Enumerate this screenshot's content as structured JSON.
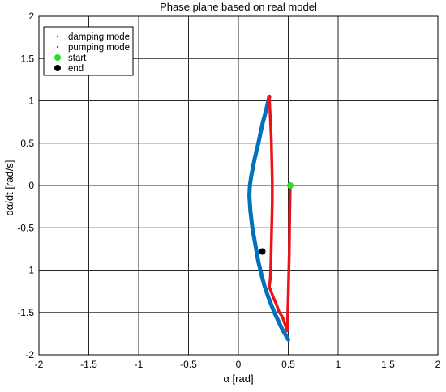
{
  "chart_data": {
    "type": "scatter",
    "title": "Phase plane based on real model",
    "xlabel": "α [rad]",
    "ylabel": "dα/dt [rad/s]",
    "xlim": [
      -2,
      2
    ],
    "ylim": [
      -2,
      2
    ],
    "xticks": [
      -2,
      -1.5,
      -1,
      -0.5,
      0,
      0.5,
      1,
      1.5,
      2
    ],
    "yticks": [
      -2,
      -1.5,
      -1,
      -0.5,
      0,
      0.5,
      1,
      1.5,
      2
    ],
    "xtick_labels": [
      "-2",
      "-1.5",
      "-1",
      "-0.5",
      "0",
      "0.5",
      "1",
      "1.5",
      "2"
    ],
    "ytick_labels": [
      "-2",
      "-1.5",
      "-1",
      "-0.5",
      "0",
      "0.5",
      "1",
      "1.5",
      "2"
    ],
    "grid": true,
    "legend_position": "top-left",
    "colors": {
      "damping": "#0072bd",
      "pumping": "#e8141a",
      "start": "#22e21f",
      "end": "#000000"
    },
    "series": [
      {
        "name": "damping mode",
        "color": "#0072bd",
        "x": [
          0.31,
          0.28,
          0.24,
          0.2,
          0.16,
          0.13,
          0.115,
          0.11,
          0.12,
          0.14,
          0.17,
          0.2,
          0.23,
          0.26,
          0.28,
          0.3,
          0.32,
          0.34,
          0.36,
          0.38,
          0.4,
          0.42,
          0.44,
          0.46,
          0.48,
          0.5
        ],
        "y": [
          1.05,
          0.9,
          0.72,
          0.5,
          0.3,
          0.12,
          0.0,
          -0.12,
          -0.3,
          -0.5,
          -0.7,
          -0.9,
          -1.05,
          -1.18,
          -1.25,
          -1.32,
          -1.38,
          -1.44,
          -1.5,
          -1.55,
          -1.6,
          -1.65,
          -1.7,
          -1.74,
          -1.78,
          -1.82
        ]
      },
      {
        "name": "pumping mode",
        "color": "#e8141a",
        "x": [
          0.31,
          0.32,
          0.33,
          0.335,
          0.34,
          0.34,
          0.335,
          0.33,
          0.325,
          0.32,
          0.31,
          0.36,
          0.38,
          0.41,
          0.44,
          0.47,
          0.49,
          0.5,
          0.51,
          0.515,
          0.52
        ],
        "y": [
          1.05,
          0.8,
          0.55,
          0.3,
          0.05,
          -0.2,
          -0.45,
          -0.7,
          -0.95,
          -1.1,
          -1.2,
          -1.35,
          -1.4,
          -1.5,
          -1.55,
          -1.65,
          -1.72,
          -1.3,
          -0.8,
          -0.3,
          0.0
        ]
      }
    ],
    "markers": [
      {
        "name": "start",
        "x": 0.52,
        "y": 0.0,
        "color": "#22e21f"
      },
      {
        "name": "end",
        "x": 0.24,
        "y": -0.78,
        "color": "#000000"
      }
    ]
  }
}
